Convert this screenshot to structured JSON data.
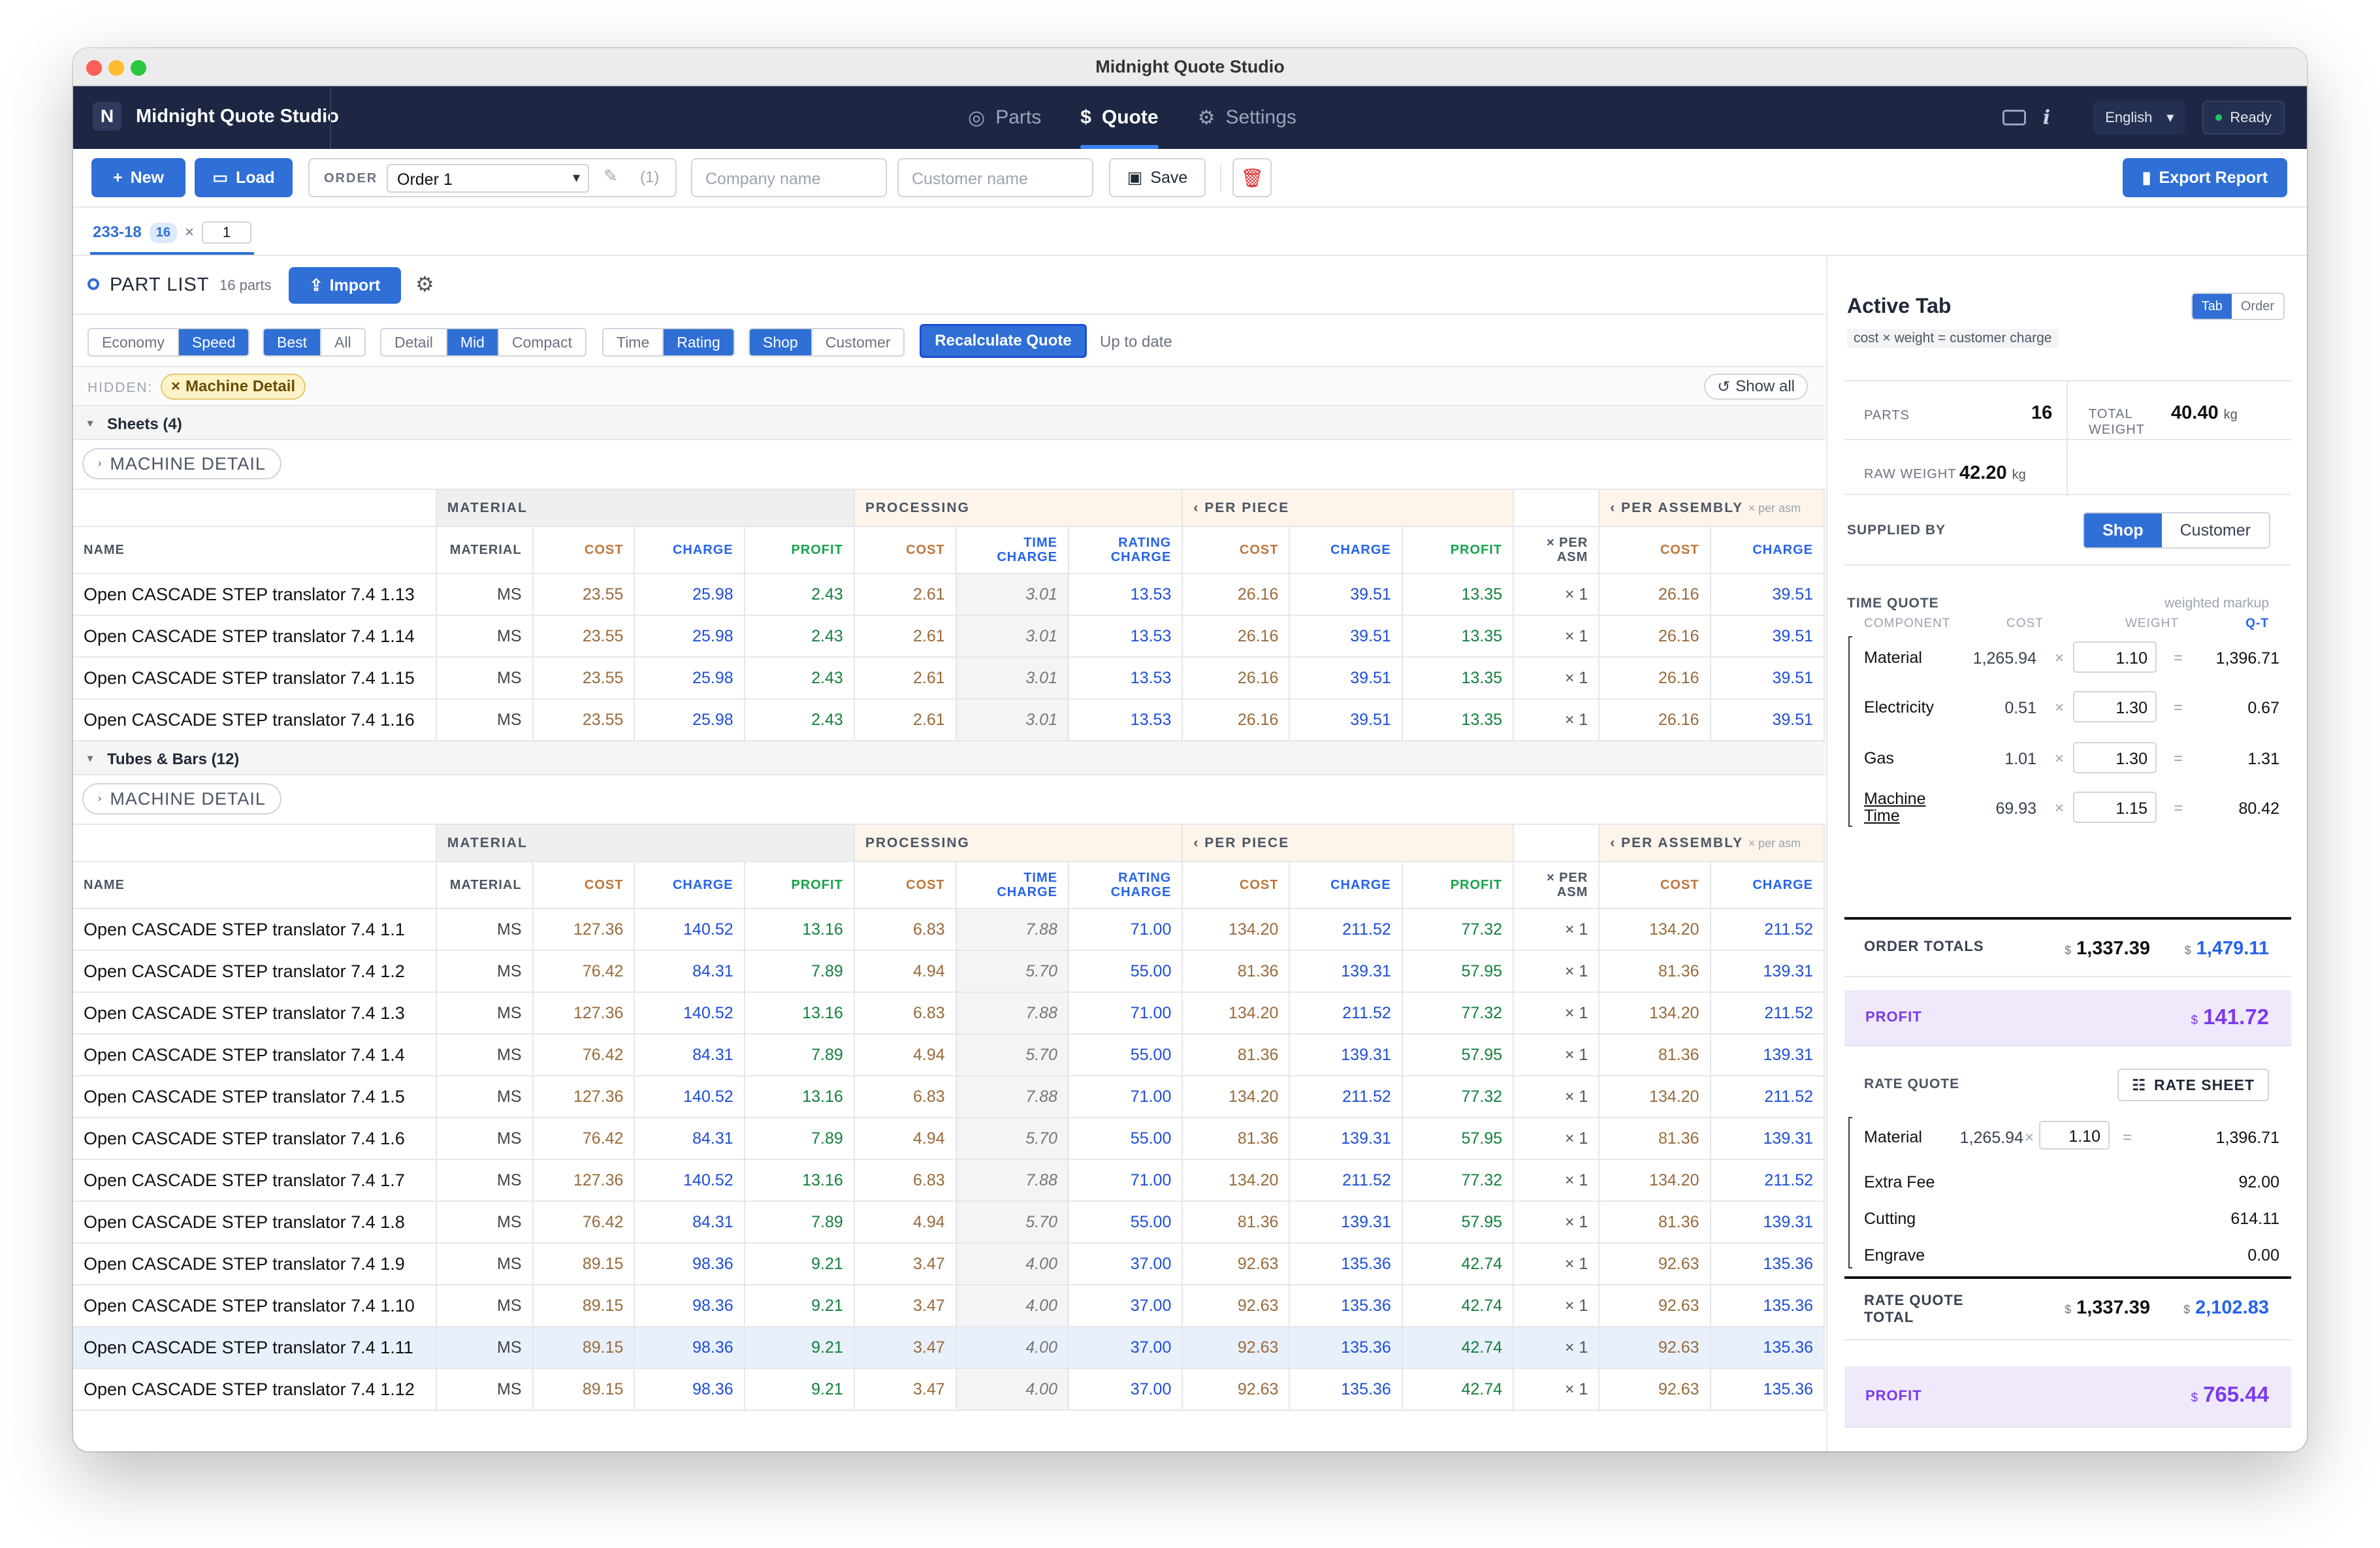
{
  "window": {
    "title": "Midnight Quote Studio"
  },
  "nav": {
    "brand": "Midnight Quote Studio",
    "logo_letter": "N",
    "tabs": [
      {
        "label": "Parts",
        "icon": "target-icon"
      },
      {
        "label": "Quote",
        "icon": "dollar-icon",
        "active": true
      },
      {
        "label": "Settings",
        "icon": "gear-icon"
      }
    ],
    "language": "English",
    "status": "Ready"
  },
  "toolbar": {
    "new_label": "New",
    "load_label": "Load",
    "order_label": "ORDER",
    "order_value": "Order 1",
    "order_count": "(1)",
    "company_placeholder": "Company name",
    "customer_placeholder": "Customer name",
    "save_label": "Save",
    "export_label": "Export Report"
  },
  "order_tab": {
    "name": "233-18",
    "count": "16",
    "mult": "×",
    "qty": "1"
  },
  "part_list": {
    "title": "PART LIST",
    "count": "16 parts",
    "import_label": "Import",
    "filters": {
      "mode": [
        "Economy",
        "Speed"
      ],
      "pick": [
        "Best",
        "All"
      ],
      "detail": [
        "Detail",
        "Mid",
        "Compact"
      ],
      "basis": [
        "Time",
        "Rating"
      ],
      "supply": [
        "Shop",
        "Customer"
      ]
    },
    "recalc_label": "Recalculate Quote",
    "up_to_date": "Up to date",
    "hidden_label": "HIDDEN:",
    "hidden_chip": "Machine Detail",
    "show_all": "Show all",
    "machine_detail": "MACHINE DETAIL",
    "col_groups": {
      "material": "MATERIAL",
      "processing": "PROCESSING",
      "per_piece": "PER PIECE",
      "per_assembly": "PER ASSEMBLY",
      "per_asm_note": "× per asm"
    },
    "cols": [
      "NAME",
      "MATERIAL",
      "COST",
      "CHARGE",
      "PROFIT",
      "COST",
      "TIME CHARGE",
      "RATING CHARGE",
      "COST",
      "CHARGE",
      "PROFIT",
      "× PER ASM",
      "COST",
      "CHARGE"
    ],
    "groups": [
      {
        "name": "Sheets (4)",
        "rows": [
          [
            "Open CASCADE STEP translator 7.4 1.13",
            "MS",
            "23.55",
            "25.98",
            "2.43",
            "2.61",
            "3.01",
            "13.53",
            "26.16",
            "39.51",
            "13.35",
            "× 1",
            "26.16",
            "39.51"
          ],
          [
            "Open CASCADE STEP translator 7.4 1.14",
            "MS",
            "23.55",
            "25.98",
            "2.43",
            "2.61",
            "3.01",
            "13.53",
            "26.16",
            "39.51",
            "13.35",
            "× 1",
            "26.16",
            "39.51"
          ],
          [
            "Open CASCADE STEP translator 7.4 1.15",
            "MS",
            "23.55",
            "25.98",
            "2.43",
            "2.61",
            "3.01",
            "13.53",
            "26.16",
            "39.51",
            "13.35",
            "× 1",
            "26.16",
            "39.51"
          ],
          [
            "Open CASCADE STEP translator 7.4 1.16",
            "MS",
            "23.55",
            "25.98",
            "2.43",
            "2.61",
            "3.01",
            "13.53",
            "26.16",
            "39.51",
            "13.35",
            "× 1",
            "26.16",
            "39.51"
          ]
        ]
      },
      {
        "name": "Tubes & Bars (12)",
        "rows": [
          [
            "Open CASCADE STEP translator 7.4 1.1",
            "MS",
            "127.36",
            "140.52",
            "13.16",
            "6.83",
            "7.88",
            "71.00",
            "134.20",
            "211.52",
            "77.32",
            "× 1",
            "134.20",
            "211.52"
          ],
          [
            "Open CASCADE STEP translator 7.4 1.2",
            "MS",
            "76.42",
            "84.31",
            "7.89",
            "4.94",
            "5.70",
            "55.00",
            "81.36",
            "139.31",
            "57.95",
            "× 1",
            "81.36",
            "139.31"
          ],
          [
            "Open CASCADE STEP translator 7.4 1.3",
            "MS",
            "127.36",
            "140.52",
            "13.16",
            "6.83",
            "7.88",
            "71.00",
            "134.20",
            "211.52",
            "77.32",
            "× 1",
            "134.20",
            "211.52"
          ],
          [
            "Open CASCADE STEP translator 7.4 1.4",
            "MS",
            "76.42",
            "84.31",
            "7.89",
            "4.94",
            "5.70",
            "55.00",
            "81.36",
            "139.31",
            "57.95",
            "× 1",
            "81.36",
            "139.31"
          ],
          [
            "Open CASCADE STEP translator 7.4 1.5",
            "MS",
            "127.36",
            "140.52",
            "13.16",
            "6.83",
            "7.88",
            "71.00",
            "134.20",
            "211.52",
            "77.32",
            "× 1",
            "134.20",
            "211.52"
          ],
          [
            "Open CASCADE STEP translator 7.4 1.6",
            "MS",
            "76.42",
            "84.31",
            "7.89",
            "4.94",
            "5.70",
            "55.00",
            "81.36",
            "139.31",
            "57.95",
            "× 1",
            "81.36",
            "139.31"
          ],
          [
            "Open CASCADE STEP translator 7.4 1.7",
            "MS",
            "127.36",
            "140.52",
            "13.16",
            "6.83",
            "7.88",
            "71.00",
            "134.20",
            "211.52",
            "77.32",
            "× 1",
            "134.20",
            "211.52"
          ],
          [
            "Open CASCADE STEP translator 7.4 1.8",
            "MS",
            "76.42",
            "84.31",
            "7.89",
            "4.94",
            "5.70",
            "55.00",
            "81.36",
            "139.31",
            "57.95",
            "× 1",
            "81.36",
            "139.31"
          ],
          [
            "Open CASCADE STEP translator 7.4 1.9",
            "MS",
            "89.15",
            "98.36",
            "9.21",
            "3.47",
            "4.00",
            "37.00",
            "92.63",
            "135.36",
            "42.74",
            "× 1",
            "92.63",
            "135.36"
          ],
          [
            "Open CASCADE STEP translator 7.4 1.10",
            "MS",
            "89.15",
            "98.36",
            "9.21",
            "3.47",
            "4.00",
            "37.00",
            "92.63",
            "135.36",
            "42.74",
            "× 1",
            "92.63",
            "135.36"
          ],
          [
            "Open CASCADE STEP translator 7.4 1.11",
            "MS",
            "89.15",
            "98.36",
            "9.21",
            "3.47",
            "4.00",
            "37.00",
            "92.63",
            "135.36",
            "42.74",
            "× 1",
            "92.63",
            "135.36"
          ],
          [
            "Open CASCADE STEP translator 7.4 1.12",
            "MS",
            "89.15",
            "98.36",
            "9.21",
            "3.47",
            "4.00",
            "37.00",
            "92.63",
            "135.36",
            "42.74",
            "× 1",
            "92.63",
            "135.36"
          ]
        ]
      }
    ]
  },
  "side": {
    "title": "Active Tab",
    "toggle": [
      "Tab",
      "Order"
    ],
    "formula": "cost × weight = customer charge",
    "parts_label": "PARTS",
    "parts_value": "16",
    "total_weight_label": "TOTAL WEIGHT",
    "total_weight_value": "40.40",
    "raw_weight_label": "RAW WEIGHT",
    "raw_weight_value": "42.20",
    "unit": "kg",
    "supplied_by_label": "SUPPLIED BY",
    "supplied_by": [
      "Shop",
      "Customer"
    ],
    "time_quote_label": "TIME QUOTE",
    "weighted_markup": "weighted markup",
    "tq_cols": [
      "COMPONENT",
      "COST",
      "WEIGHT",
      "Q-T"
    ],
    "tq_rows": [
      {
        "name": "Material",
        "cost": "1,265.94",
        "weight": "1.10",
        "result": "1,396.71"
      },
      {
        "name": "Electricity",
        "cost": "0.51",
        "weight": "1.30",
        "result": "0.67"
      },
      {
        "name": "Gas",
        "cost": "1.01",
        "weight": "1.30",
        "result": "1.31"
      },
      {
        "name": "Machine Time",
        "cost": "69.93",
        "weight": "1.15",
        "result": "80.42"
      }
    ],
    "times": "×",
    "equals": "=",
    "currency": "$",
    "order_totals_label": "ORDER TOTALS",
    "order_totals_cost": "1,337.39",
    "order_totals_charge": "1,479.11",
    "profit_label": "PROFIT",
    "profit_value": "141.72",
    "rate_quote_label": "RATE QUOTE",
    "rate_sheet_label": "RATE SHEET",
    "rq_material": {
      "name": "Material",
      "cost": "1,265.94",
      "weight": "1.10",
      "result": "1,396.71"
    },
    "rq_rows": [
      {
        "name": "Extra Fee",
        "value": "92.00"
      },
      {
        "name": "Cutting",
        "value": "614.11"
      },
      {
        "name": "Engrave",
        "value": "0.00"
      }
    ],
    "rq_total_label": "RATE QUOTE TOTAL",
    "rq_total_cost": "1,337.39",
    "rq_total_charge": "2,102.83",
    "rq_profit_value": "765.44"
  }
}
